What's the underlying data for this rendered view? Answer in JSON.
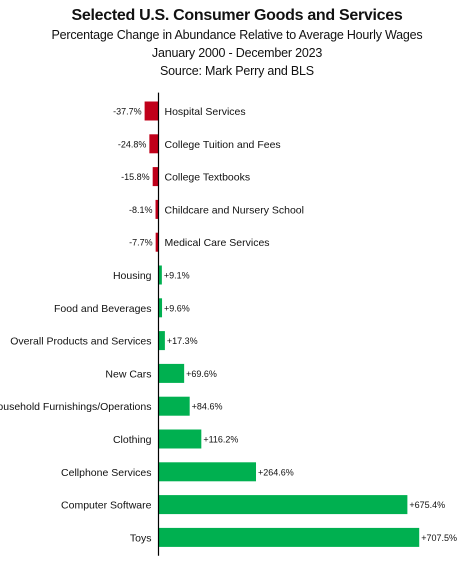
{
  "chart_data": {
    "type": "bar",
    "orientation": "horizontal",
    "title": "Selected U.S. Consumer Goods and Services",
    "subtitle_lines": [
      "Percentage Change in Abundance Relative to Average Hourly Wages",
      "January 2000  -  December 2023",
      "Source: Mark Perry and BLS"
    ],
    "categories": [
      "Hospital Services",
      "College Tuition and Fees",
      "College Textbooks",
      "Childcare and Nursery School",
      "Medical Care Services",
      "Housing",
      "Food and Beverages",
      "Overall Products and Services",
      "New Cars",
      "Household Furnishings/Operations",
      "Clothing",
      "Cellphone Services",
      "Computer Software",
      "Toys"
    ],
    "values": [
      -37.7,
      -24.8,
      -15.8,
      -8.1,
      -7.7,
      9.1,
      9.6,
      17.3,
      69.6,
      84.6,
      116.2,
      264.6,
      675.4,
      707.5
    ],
    "value_labels": [
      "-37.7%",
      "-24.8%",
      "-15.8%",
      "-8.1%",
      "-7.7%",
      "+9.1%",
      "+9.6%",
      "+17.3%",
      "+69.6%",
      "+84.6%",
      "+116.2%",
      "+264.6%",
      "+675.4%",
      "+707.5%"
    ],
    "colors": {
      "negative": "#c0001a",
      "positive": "#00b050",
      "axis": "#000000",
      "text": "#111111"
    },
    "grid": false,
    "legend": "none"
  }
}
